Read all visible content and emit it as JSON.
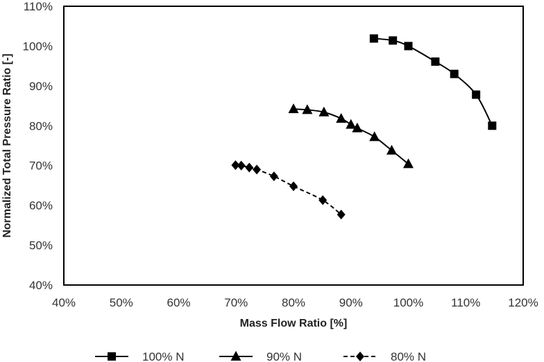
{
  "chart_data": {
    "type": "line",
    "title": "",
    "xlabel": "Mass Flow Ratio [%]",
    "ylabel": "Normalized Total Pressure Ratio [-]",
    "xlim": [
      40,
      120
    ],
    "ylim": [
      40,
      110
    ],
    "x_ticks": [
      "40%",
      "50%",
      "60%",
      "70%",
      "80%",
      "90%",
      "100%",
      "110%",
      "120%"
    ],
    "y_ticks": [
      "40%",
      "50%",
      "60%",
      "70%",
      "80%",
      "90%",
      "100%",
      "110%"
    ],
    "grid": false,
    "legend_position": "bottom",
    "series": [
      {
        "name": "100% N",
        "marker": "square",
        "line_style": "solid",
        "color": "#000000",
        "x": [
          94.0,
          97.3,
          100.0,
          104.7,
          108.0,
          111.8,
          114.6
        ],
        "y": [
          101.9,
          101.4,
          100.0,
          96.1,
          93.0,
          87.8,
          80.0
        ]
      },
      {
        "name": "90% N",
        "marker": "triangle",
        "line_style": "solid",
        "color": "#000000",
        "x": [
          80.0,
          82.4,
          85.3,
          88.3,
          90.0,
          91.1,
          94.1,
          97.1,
          100.0
        ],
        "y": [
          84.2,
          84.0,
          83.4,
          81.8,
          80.3,
          79.4,
          77.2,
          73.8,
          70.4
        ]
      },
      {
        "name": "80% N",
        "marker": "diamond",
        "line_style": "dashed",
        "color": "#000000",
        "x": [
          69.9,
          70.9,
          72.3,
          73.6,
          76.6,
          80.0,
          85.1,
          88.3
        ],
        "y": [
          70.1,
          70.0,
          69.5,
          69.0,
          67.3,
          64.8,
          61.3,
          57.7
        ]
      }
    ]
  }
}
